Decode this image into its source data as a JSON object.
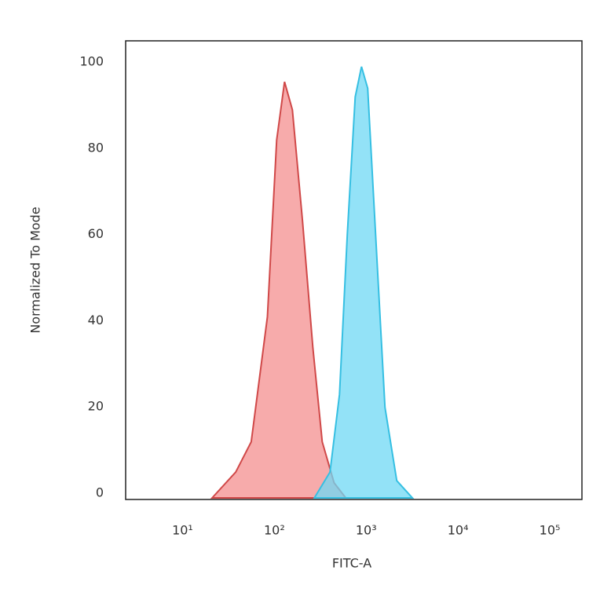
{
  "chart_data": {
    "type": "area",
    "x_label": "FITC-A",
    "y_label": "Normalized To Mode",
    "xlog": true,
    "xlim": [
      2.4,
      224000
    ],
    "ylim": [
      0,
      106
    ],
    "xticks": [
      {
        "value": 10,
        "label": "10¹"
      },
      {
        "value": 100,
        "label": "10²"
      },
      {
        "value": 1000,
        "label": "10³"
      },
      {
        "value": 10000,
        "label": "10⁴"
      },
      {
        "value": 100000,
        "label": "10⁵"
      }
    ],
    "yticks": [
      0,
      20,
      40,
      60,
      80,
      100
    ],
    "series": [
      {
        "color": "#f48f8f",
        "stroke": "#d04848",
        "x": [
          21,
          38,
          56,
          84,
          106,
          129,
          157,
          203,
          262,
          332,
          447,
          600
        ],
        "values": [
          0,
          6,
          13,
          42,
          83,
          96.5,
          90,
          64,
          35,
          13,
          3.5,
          0
        ]
      },
      {
        "color": "#6fd8f4",
        "stroke": "#35bfe2",
        "x": [
          273,
          404,
          512,
          623,
          759,
          889,
          1040,
          1267,
          1604,
          2153,
          3190
        ],
        "values": [
          0,
          6,
          24,
          61,
          93,
          100,
          95,
          61,
          21,
          4,
          0
        ]
      }
    ]
  }
}
